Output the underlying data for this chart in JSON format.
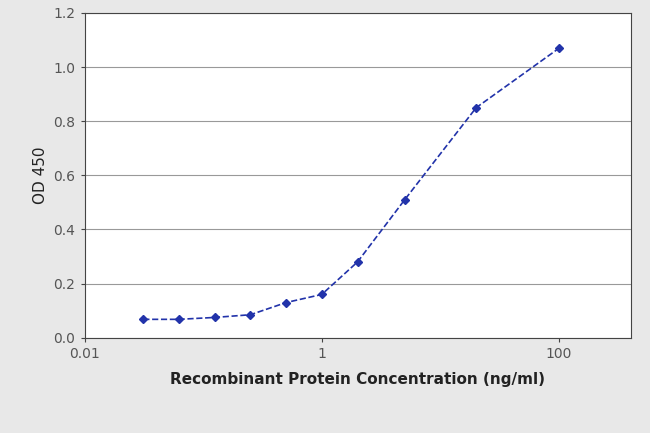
{
  "x": [
    0.0313,
    0.0625,
    0.125,
    0.25,
    0.5,
    1.0,
    2.0,
    5.0,
    20.0,
    100.0
  ],
  "y": [
    0.068,
    0.068,
    0.075,
    0.085,
    0.13,
    0.16,
    0.28,
    0.51,
    0.85,
    1.07
  ],
  "line_color": "#2233aa",
  "marker": "D",
  "marker_size": 4,
  "linewidth": 1.2,
  "xlabel": "Recombinant Protein Concentration (ng/ml)",
  "ylabel": "OD 450",
  "xlim": [
    0.01,
    400
  ],
  "ylim": [
    0.0,
    1.2
  ],
  "yticks": [
    0.0,
    0.2,
    0.4,
    0.6,
    0.8,
    1.0,
    1.2
  ],
  "xtick_positions": [
    0.01,
    1,
    100
  ],
  "xtick_labels": [
    "0.01",
    "1",
    "100"
  ],
  "background_color": "#e8e8e8",
  "plot_bg_color": "#ffffff",
  "grid_color": "#999999",
  "xlabel_fontsize": 11,
  "ylabel_fontsize": 11,
  "tick_fontsize": 10
}
